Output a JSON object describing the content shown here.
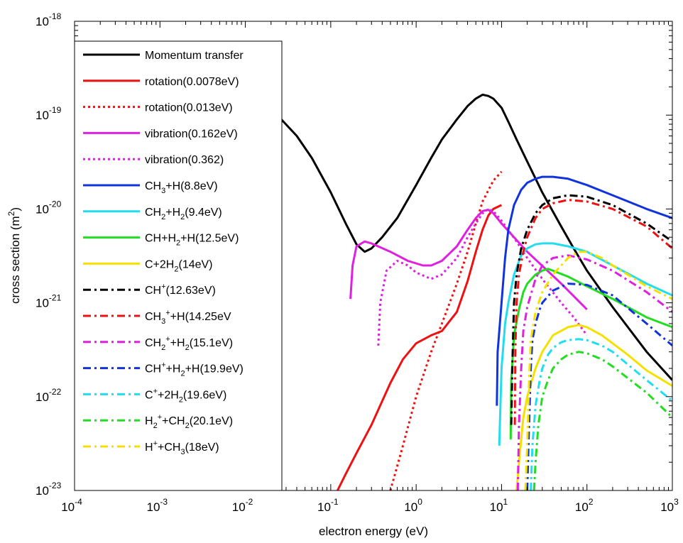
{
  "chart_data": {
    "type": "line",
    "xlabel": "electron energy (eV)",
    "ylabel": "cross section (m",
    "ylabel_sup": "2",
    "ylabel_end": ")",
    "x_scale": "log",
    "y_scale": "log",
    "xlim": [
      0.0001,
      1000
    ],
    "ylim": [
      1e-23,
      1e-18
    ],
    "grid": false,
    "legend_position": "left",
    "x_ticks": [
      {
        "base": "10",
        "exp": "-4",
        "value": 0.0001
      },
      {
        "base": "10",
        "exp": "-3",
        "value": 0.001
      },
      {
        "base": "10",
        "exp": "-2",
        "value": 0.01
      },
      {
        "base": "10",
        "exp": "-1",
        "value": 0.1
      },
      {
        "base": "10",
        "exp": "0",
        "value": 1
      },
      {
        "base": "10",
        "exp": "1",
        "value": 10
      },
      {
        "base": "10",
        "exp": "2",
        "value": 100
      },
      {
        "base": "10",
        "exp": "3",
        "value": 1000
      }
    ],
    "y_ticks": [
      {
        "base": "10",
        "exp": "-23",
        "value": 1e-23
      },
      {
        "base": "10",
        "exp": "-22",
        "value": 1e-22
      },
      {
        "base": "10",
        "exp": "-21",
        "value": 1e-21
      },
      {
        "base": "10",
        "exp": "-20",
        "value": 1e-20
      },
      {
        "base": "10",
        "exp": "-19",
        "value": 1e-19
      },
      {
        "base": "10",
        "exp": "-18",
        "value": 1e-18
      }
    ],
    "series": [
      {
        "name": "Momentum transfer",
        "label": [
          [
            "Momentum transfer",
            ""
          ]
        ],
        "color": "#000000",
        "style": "solid",
        "x": [
          0.025,
          0.04,
          0.06,
          0.1,
          0.15,
          0.2,
          0.25,
          0.3,
          0.4,
          0.6,
          1,
          1.5,
          2,
          3,
          4,
          5,
          6,
          7,
          8,
          10,
          12,
          15,
          20,
          30,
          50,
          70,
          100,
          200,
          500,
          1000
        ],
        "y": [
          9.5e-20,
          6e-20,
          3.5e-20,
          1.5e-20,
          7e-21,
          4.2e-21,
          3.5e-21,
          3.8e-21,
          5e-21,
          8e-21,
          1.8e-20,
          3.5e-20,
          5.5e-20,
          9e-20,
          1.25e-19,
          1.5e-19,
          1.65e-19,
          1.6e-19,
          1.5e-19,
          1.2e-19,
          8.5e-20,
          5.5e-20,
          3.2e-20,
          1.5e-20,
          6.5e-21,
          3.8e-21,
          2.2e-21,
          9e-22,
          3e-22,
          1.5e-22
        ]
      },
      {
        "name": "rotation(0.0078eV)",
        "label": [
          [
            "rotation(0.0078eV)",
            ""
          ]
        ],
        "color": "#ee1111",
        "style": "solid",
        "x": [
          0.12,
          0.15,
          0.2,
          0.3,
          0.5,
          0.7,
          1,
          1.5,
          2,
          3,
          4,
          5,
          6,
          7,
          8,
          10
        ],
        "y": [
          1e-23,
          1.5e-23,
          2.5e-23,
          5e-23,
          1.4e-22,
          2.5e-22,
          3.7e-22,
          4.5e-22,
          5e-22,
          8e-22,
          1.7e-21,
          3.5e-21,
          6e-21,
          8.5e-21,
          1e-20,
          1.1e-20
        ]
      },
      {
        "name": "rotation(0.013eV)",
        "label": [
          [
            "rotation(0.013eV)",
            ""
          ]
        ],
        "color": "#ee1111",
        "style": "dotted",
        "x": [
          0.5,
          0.7,
          1,
          1.5,
          2,
          3,
          4,
          5,
          6,
          8,
          10
        ],
        "y": [
          1e-23,
          3e-23,
          1e-22,
          3e-22,
          6e-22,
          1.6e-21,
          3.5e-21,
          7e-21,
          1.2e-20,
          2e-20,
          2.5e-20
        ]
      },
      {
        "name": "vibration(0.162eV)",
        "label": [
          [
            "vibration(0.162eV)",
            ""
          ]
        ],
        "color": "#e020e0",
        "style": "solid",
        "x": [
          0.17,
          0.18,
          0.2,
          0.25,
          0.3,
          0.5,
          0.8,
          1.2,
          1.5,
          2,
          3,
          4,
          5,
          6,
          7,
          8,
          10,
          20,
          50,
          100
        ],
        "y": [
          1.1e-21,
          2.5e-21,
          4e-21,
          4.5e-21,
          4.3e-21,
          3.5e-21,
          2.8e-21,
          2.5e-21,
          2.5e-21,
          2.8e-21,
          4e-21,
          6e-21,
          8e-21,
          9.5e-21,
          9.8e-21,
          9e-21,
          7e-21,
          3.5e-21,
          1.6e-21,
          8.5e-22
        ]
      },
      {
        "name": "vibration(0.362)",
        "label": [
          [
            "vibration(0.362)",
            ""
          ]
        ],
        "color": "#e020e0",
        "style": "dotted",
        "x": [
          0.36,
          0.38,
          0.45,
          0.6,
          0.8,
          1,
          1.5,
          2,
          3,
          4,
          5,
          6,
          7,
          8,
          10,
          15,
          20,
          30,
          50,
          70,
          100
        ],
        "y": [
          3.5e-22,
          1e-21,
          2.2e-21,
          2.8e-21,
          2.5e-21,
          2.1e-21,
          1.8e-21,
          2e-21,
          3e-21,
          5e-21,
          7e-21,
          9e-21,
          1e-20,
          9.5e-21,
          7.5e-21,
          4.5e-21,
          3e-21,
          1.8e-21,
          1e-21,
          7e-22,
          4.5e-22
        ]
      },
      {
        "name": "CH3+H(8.8eV)",
        "label": [
          [
            "CH",
            ""
          ],
          [
            "3",
            "sub"
          ],
          [
            "+H(8.8eV)",
            ""
          ]
        ],
        "color": "#1133dd",
        "style": "solid",
        "x": [
          8.8,
          9,
          10,
          11,
          12,
          14,
          17,
          20,
          25,
          30,
          40,
          60,
          100,
          200,
          500,
          1000
        ],
        "y": [
          8e-23,
          3e-22,
          1e-21,
          3e-21,
          6e-21,
          1.1e-20,
          1.6e-20,
          1.9e-20,
          2.1e-20,
          2.2e-20,
          2.2e-20,
          2.1e-20,
          1.8e-20,
          1.4e-20,
          1e-20,
          8e-21
        ]
      },
      {
        "name": "CH2+H2(9.4eV)",
        "label": [
          [
            "CH",
            ""
          ],
          [
            "2",
            "sub"
          ],
          [
            "+H",
            ""
          ],
          [
            "2",
            "sub"
          ],
          [
            "(9.4eV)",
            ""
          ]
        ],
        "color": "#22ddee",
        "style": "solid",
        "x": [
          9.4,
          10,
          11,
          12,
          14,
          17,
          20,
          25,
          30,
          40,
          60,
          100,
          200,
          500,
          1000
        ],
        "y": [
          3e-23,
          2e-22,
          6e-22,
          1e-21,
          2e-21,
          3.2e-21,
          3.8e-21,
          4.2e-21,
          4.3e-21,
          4.3e-21,
          4e-21,
          3.5e-21,
          2.5e-21,
          1.6e-21,
          1.2e-21
        ]
      },
      {
        "name": "CH+H2+H(12.5eV)",
        "label": [
          [
            "CH+H",
            ""
          ],
          [
            "2",
            "sub"
          ],
          [
            "+H(12.5eV)",
            ""
          ]
        ],
        "color": "#22dd22",
        "style": "solid",
        "x": [
          12.8,
          13,
          14,
          16,
          18,
          20,
          25,
          30,
          35,
          40,
          60,
          100,
          200,
          500,
          1000
        ],
        "y": [
          3.5e-23,
          1.5e-22,
          4.5e-22,
          8.5e-22,
          1.3e-21,
          1.6e-21,
          2e-21,
          2.2e-21,
          2.3e-21,
          2.2e-21,
          1.9e-21,
          1.5e-21,
          1.1e-21,
          7e-22,
          5.5e-22
        ]
      },
      {
        "name": "C+2H2(14eV)",
        "label": [
          [
            "C+2H",
            ""
          ],
          [
            "2",
            "sub"
          ],
          [
            "(14eV)",
            ""
          ]
        ],
        "color": "#f5e000",
        "style": "solid",
        "x": [
          15,
          16,
          18,
          20,
          25,
          30,
          40,
          60,
          80,
          100,
          150,
          200,
          300,
          500,
          1000
        ],
        "y": [
          1e-23,
          2e-23,
          6e-23,
          1e-22,
          2e-22,
          3e-22,
          4.5e-22,
          5.5e-22,
          5.8e-22,
          5.5e-22,
          4.5e-22,
          3.7e-22,
          2.8e-22,
          1.9e-22,
          1.3e-22
        ]
      },
      {
        "name": "CH+(12.63eV)",
        "label": [
          [
            "CH",
            ""
          ],
          [
            "+",
            "sup"
          ],
          [
            "(12.63eV)",
            ""
          ]
        ],
        "color": "#000000",
        "style": "dashdot",
        "x": [
          13,
          13.5,
          14,
          15,
          17,
          20,
          25,
          30,
          40,
          60,
          100,
          200,
          500,
          1000
        ],
        "y": [
          5e-23,
          3e-22,
          1e-21,
          2e-21,
          3.8e-21,
          6e-21,
          9e-21,
          1.1e-20,
          1.3e-20,
          1.4e-20,
          1.35e-20,
          1.1e-20,
          7e-21,
          4.5e-21
        ]
      },
      {
        "name": "CH3++H(14.25eV",
        "label": [
          [
            "CH",
            ""
          ],
          [
            "3",
            "sub"
          ],
          [
            "+",
            "sup"
          ],
          [
            "+H(14.25eV",
            ""
          ]
        ],
        "color": "#ee1111",
        "style": "dashdot",
        "x": [
          14.3,
          14.5,
          15,
          16,
          18,
          20,
          25,
          30,
          40,
          60,
          100,
          200,
          500,
          1000
        ],
        "y": [
          5e-23,
          3e-22,
          1e-21,
          2e-21,
          3.5e-21,
          5e-21,
          8e-21,
          1e-20,
          1.15e-20,
          1.25e-20,
          1.2e-20,
          1e-20,
          6.5e-21,
          3.8e-21
        ]
      },
      {
        "name": "CH2++H2(15.1eV)",
        "label": [
          [
            "CH",
            ""
          ],
          [
            "2",
            "sub"
          ],
          [
            "+",
            "sup"
          ],
          [
            "+H",
            ""
          ],
          [
            "2",
            "sub"
          ],
          [
            "(15.1eV)",
            ""
          ]
        ],
        "color": "#e020e0",
        "style": "dashdot",
        "x": [
          15.5,
          16,
          17,
          18,
          20,
          25,
          30,
          40,
          60,
          100,
          200,
          500,
          1000
        ],
        "y": [
          1e-23,
          5e-23,
          2e-22,
          5e-22,
          9e-22,
          1.8e-21,
          2.5e-21,
          3e-21,
          3.2e-21,
          2.9e-21,
          2.2e-21,
          1.3e-21,
          8e-22
        ]
      },
      {
        "name": "CH++H2+H(19.9eV)",
        "label": [
          [
            "CH",
            ""
          ],
          [
            "+",
            "sup"
          ],
          [
            "+H",
            ""
          ],
          [
            "2",
            "sub"
          ],
          [
            "+H(19.9eV)",
            ""
          ]
        ],
        "color": "#1133dd",
        "style": "dashdot",
        "x": [
          20,
          21,
          22,
          23,
          25,
          28,
          30,
          40,
          60,
          100,
          200,
          500,
          1000
        ],
        "y": [
          1e-23,
          5e-23,
          2e-22,
          4e-22,
          6e-22,
          8.5e-22,
          1e-21,
          1.35e-21,
          1.6e-21,
          1.55e-21,
          1.2e-21,
          6e-22,
          3.5e-22
        ]
      },
      {
        "name": "C++2H2(19.6eV)",
        "label": [
          [
            "C",
            ""
          ],
          [
            "+",
            "sup"
          ],
          [
            "+2H",
            ""
          ],
          [
            "2",
            "sub"
          ],
          [
            "(19.6eV)",
            ""
          ]
        ],
        "color": "#22ddee",
        "style": "dashdot",
        "x": [
          22,
          23,
          25,
          28,
          30,
          35,
          40,
          50,
          60,
          80,
          100,
          150,
          200,
          500,
          1000
        ],
        "y": [
          1e-23,
          3e-23,
          8e-23,
          1.5e-22,
          2e-22,
          2.8e-22,
          3.3e-22,
          3.8e-22,
          4e-22,
          4.1e-22,
          4e-22,
          3.5e-22,
          3e-22,
          1.5e-22,
          9e-23
        ]
      },
      {
        "name": "H2++CH2(20.1eV)",
        "label": [
          [
            "H",
            ""
          ],
          [
            "2",
            "sub"
          ],
          [
            "+",
            "sup"
          ],
          [
            "+CH",
            ""
          ],
          [
            "2",
            "sub"
          ],
          [
            "(20.1eV)",
            ""
          ]
        ],
        "color": "#22dd22",
        "style": "dashdot",
        "x": [
          24,
          25,
          27,
          30,
          35,
          40,
          50,
          60,
          80,
          100,
          150,
          200,
          500,
          1000
        ],
        "y": [
          1e-23,
          2e-23,
          5e-23,
          1e-22,
          1.5e-22,
          2e-22,
          2.5e-22,
          2.8e-22,
          3e-22,
          2.9e-22,
          2.5e-22,
          2.1e-22,
          1.1e-22,
          6e-23
        ]
      },
      {
        "name": "H++CH3(18eV)",
        "label": [
          [
            "H",
            ""
          ],
          [
            "+",
            "sup"
          ],
          [
            "+CH",
            ""
          ],
          [
            "3",
            "sub"
          ],
          [
            "(18eV)",
            ""
          ]
        ],
        "color": "#f5e000",
        "style": "dashdot",
        "x": [
          19,
          20,
          21,
          22,
          25,
          30,
          40,
          60,
          80,
          100,
          150,
          200,
          500,
          1000
        ],
        "y": [
          1e-23,
          3e-23,
          1.5e-22,
          4e-22,
          8e-22,
          1.3e-21,
          2e-21,
          3e-21,
          3.5e-21,
          3.5e-21,
          3e-21,
          2.5e-21,
          1.5e-21,
          1.1e-21
        ]
      }
    ]
  }
}
